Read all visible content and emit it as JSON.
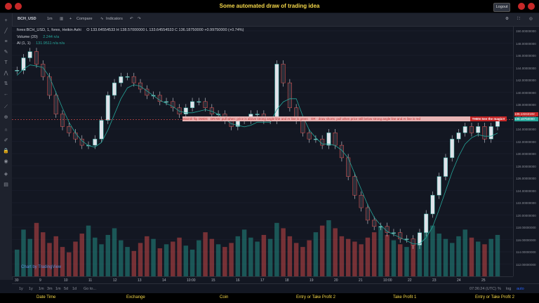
{
  "header": {
    "title": "Some automated draw of trading idea",
    "logout": "Logout"
  },
  "toolbar": {
    "symbol": "BCH_USD",
    "interval": "1m",
    "compare": "Compare",
    "indicators": "Indicators"
  },
  "legend": {
    "main": "forex:BCH_USD, 1, forex, Heikin Ashi",
    "ohlc": "O 133.64554533  H 138.57000000  L 133.64554533  C 136.18750000  +0.99750000 (+0.74%)",
    "volume": "Volume (20)",
    "volume_vals": "2.244   n/a",
    "ai": "AI (1, 1)",
    "ai_vals": "131.9511   n/a   n/a"
  },
  "annotations": {
    "banner": "Wait till flip DMDS  ·  DRAW: pull when: price is above strong angle line and AI line is green  ·  OR  ·  draw shorts: pull when price still below strong angle line and AI line is red",
    "banner2": "THEN See the magic!!"
  },
  "price_labels": {
    "current": "136.13242102",
    "last": "136.18750000"
  },
  "y_ticks": [
    "150.00000000",
    "148.00000000",
    "146.00000000",
    "144.00000000",
    "142.00000000",
    "140.00000000",
    "138.00000000",
    "136.00000000",
    "134.00000000",
    "132.00000000",
    "130.00000000",
    "128.00000000",
    "126.00000000",
    "124.00000000",
    "122.00000000",
    "120.00000000",
    "118.00000000",
    "116.00000000",
    "114.00000000",
    "112.00000000"
  ],
  "x_ticks": [
    "30",
    "9",
    "10",
    "11",
    "12",
    "13",
    "14",
    "10:00",
    "15",
    "16",
    "17",
    "18",
    "19",
    "20",
    "21",
    "10:00",
    "22",
    "23",
    "24",
    "25"
  ],
  "range_buttons": [
    "1y",
    "1y",
    "1m",
    "3m",
    "1m",
    "5d",
    "1d",
    "Go to..."
  ],
  "bottom_right": {
    "time": "07:36:24 (UTC)",
    "percent": "%",
    "log": "log",
    "auto": "auto"
  },
  "watermark": "Chart by TradingView",
  "footer": [
    "Date Time",
    "Exchange",
    "Coin",
    "Entry or Take Profit 2",
    "Take Profit 1",
    "Entry or Take Profit 2"
  ],
  "colors": {
    "up": "#26a69a",
    "down": "#ef5350",
    "wick": "#cfd3dc",
    "accent": "#f6d94a"
  },
  "chart_data": {
    "type": "candlestick",
    "ylim": [
      111,
      151
    ],
    "closes": [
      144,
      146,
      147,
      145,
      143,
      140,
      137,
      135,
      134,
      133,
      132,
      132,
      133,
      136,
      140,
      142,
      143,
      143,
      142,
      141,
      140,
      140,
      139,
      139,
      138,
      137,
      138,
      139,
      139,
      138,
      137,
      137,
      136,
      135,
      136,
      136,
      137,
      137,
      136,
      136,
      145,
      142,
      138,
      136,
      134,
      133,
      133,
      132,
      134,
      132,
      130,
      127,
      124,
      122,
      120,
      119,
      119,
      118,
      118,
      117,
      117,
      116,
      118,
      121,
      124,
      127,
      130,
      133,
      134,
      135,
      134,
      135,
      133,
      135,
      136
    ],
    "volumes": [
      20,
      35,
      28,
      40,
      33,
      25,
      30,
      22,
      18,
      26,
      32,
      38,
      29,
      24,
      31,
      36,
      27,
      22,
      19,
      25,
      30,
      28,
      21,
      24,
      26,
      29,
      23,
      20,
      27,
      33,
      28,
      24,
      22,
      25,
      30,
      35,
      29,
      26,
      31,
      28,
      40,
      36,
      30,
      25,
      22,
      27,
      33,
      38,
      42,
      36,
      30,
      28,
      26,
      24,
      29,
      33,
      37,
      31,
      27,
      24,
      22,
      26,
      30,
      34,
      38,
      32,
      28,
      25,
      30,
      35,
      29,
      26,
      24,
      28,
      31
    ]
  }
}
